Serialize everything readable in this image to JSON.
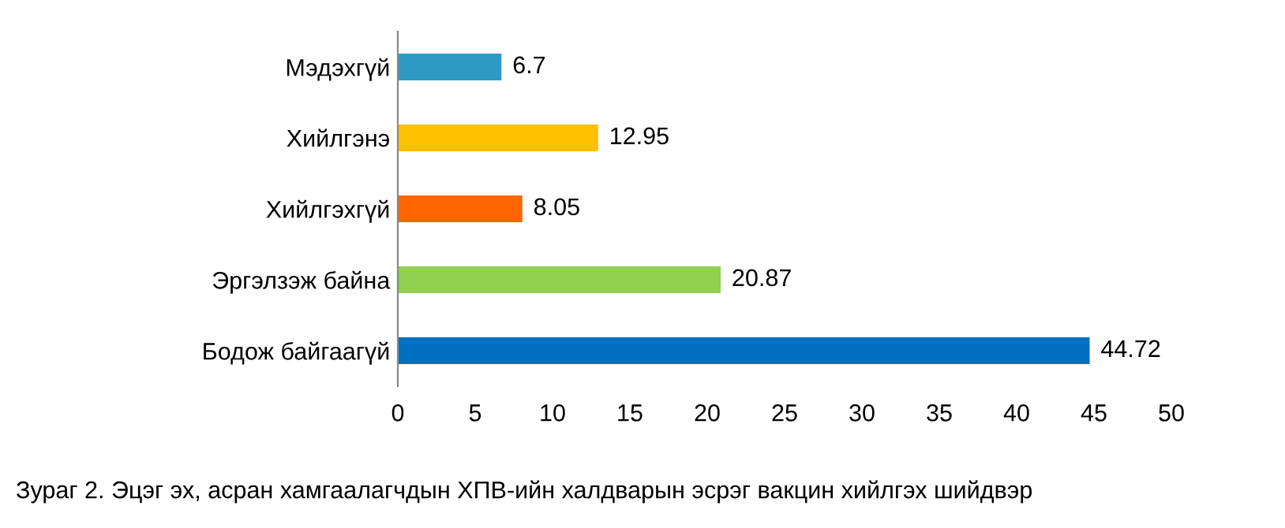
{
  "chart_data": {
    "type": "bar",
    "orientation": "horizontal",
    "categories": [
      "Мэдэхгүй",
      "Хийлгэнэ",
      "Хийлгэхгүй",
      "Эргэлзэж байна",
      "Бодож байгаагүй"
    ],
    "values": [
      6.7,
      12.95,
      8.05,
      20.87,
      44.72
    ],
    "colors": [
      "#2e9ac4",
      "#ffc000",
      "#ff6600",
      "#92d050",
      "#0070c0"
    ],
    "xlim": [
      0,
      50
    ],
    "xticks": [
      0,
      5,
      10,
      15,
      20,
      25,
      30,
      35,
      40,
      45,
      50
    ],
    "grid": false,
    "data_labels": true,
    "annotations": [
      "Зураг 2. Эцэг эх, асран хамгаалагчдын ХПВ-ийн халдварын эсрэг вакцин хийлгэх шийдвэр"
    ]
  }
}
